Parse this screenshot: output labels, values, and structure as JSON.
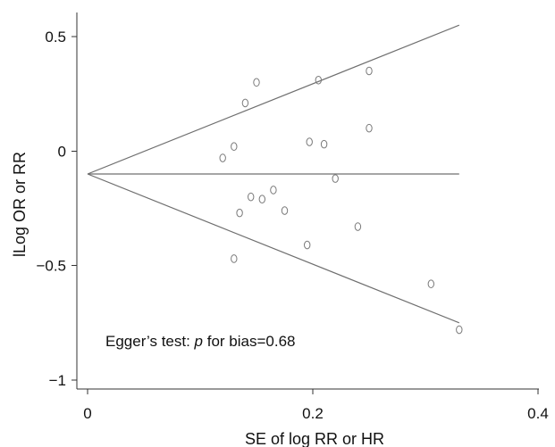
{
  "chart_data": {
    "type": "scatter",
    "xlabel": "SE of log RR or HR",
    "ylabel": "lLog OR or RR",
    "xlim": [
      0,
      0.4
    ],
    "ylim": [
      -1,
      0.5
    ],
    "x_ticks": [
      0,
      0.2,
      0.4
    ],
    "y_ticks": [
      0.5,
      0,
      -0.5,
      -1
    ],
    "x_tick_labels": [
      "0",
      "0.2",
      "0.4"
    ],
    "y_tick_labels": [
      "0.5",
      "0",
      "−0.5",
      "−1"
    ],
    "annotation": {
      "prefix": "Egger’s test: ",
      "italic": "p",
      "suffix": " for bias=0.68"
    },
    "reference_lines": {
      "center_y": -0.1,
      "start_x": 0,
      "end_x": 0.33,
      "upper_end_y": 0.55,
      "lower_end_y": -0.75
    },
    "points": [
      {
        "x": 0.12,
        "y": -0.03
      },
      {
        "x": 0.13,
        "y": 0.02
      },
      {
        "x": 0.13,
        "y": -0.47
      },
      {
        "x": 0.135,
        "y": -0.27
      },
      {
        "x": 0.14,
        "y": 0.21
      },
      {
        "x": 0.145,
        "y": -0.2
      },
      {
        "x": 0.15,
        "y": 0.3
      },
      {
        "x": 0.155,
        "y": -0.21
      },
      {
        "x": 0.165,
        "y": -0.17
      },
      {
        "x": 0.175,
        "y": -0.26
      },
      {
        "x": 0.195,
        "y": -0.41
      },
      {
        "x": 0.197,
        "y": 0.04
      },
      {
        "x": 0.205,
        "y": 0.31
      },
      {
        "x": 0.21,
        "y": 0.03
      },
      {
        "x": 0.22,
        "y": -0.12
      },
      {
        "x": 0.24,
        "y": -0.33
      },
      {
        "x": 0.25,
        "y": 0.35
      },
      {
        "x": 0.25,
        "y": 0.1
      },
      {
        "x": 0.305,
        "y": -0.58
      },
      {
        "x": 0.33,
        "y": -0.78
      }
    ]
  }
}
